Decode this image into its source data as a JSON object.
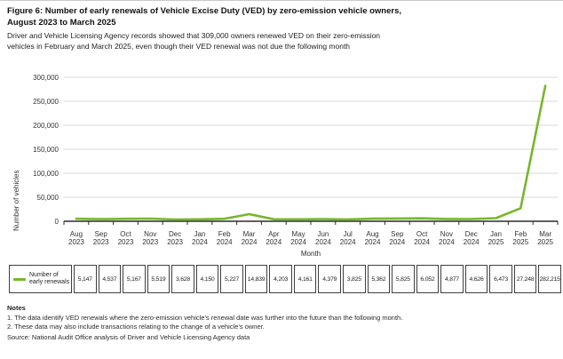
{
  "page": {
    "title_line1": "Figure 6: Number of early renewals of Vehicle Excise Duty (VED) by zero-emission vehicle owners,",
    "title_line2": "August 2023 to March 2025",
    "subtitle_line1": "Driver and Vehicle Licensing Agency records showed that 309,000 owners renewed VED on their zero-emission",
    "subtitle_line2": "vehicles in February and March 2025, even though their VED renewal was not due the following month"
  },
  "chart_data": {
    "type": "line",
    "title": "Figure 6: Number of early renewals of Vehicle Excise Duty (VED) by zero-emission vehicle owners, August 2023 to March 2025",
    "xlabel": "Month",
    "ylabel": "Number of vehicles",
    "ylim": [
      0,
      300000
    ],
    "ytick_interval": 50000,
    "ytick_labels": [
      "0",
      "50,000",
      "100,000",
      "150,000",
      "200,000",
      "250,000",
      "300,000"
    ],
    "grid": true,
    "legend_position": "bottom-table",
    "line_color": "#76b72a",
    "gridline_color": "#d9d9d9",
    "axis_color": "#2b2b2b",
    "categories": [
      "Aug 2023",
      "Sep 2023",
      "Oct 2023",
      "Nov 2023",
      "Dec 2023",
      "Jan 2024",
      "Feb 2024",
      "Mar 2024",
      "Apr 2024",
      "May 2024",
      "Jun 2024",
      "Jul 2024",
      "Aug 2024",
      "Sep 2024",
      "Oct 2024",
      "Nov 2024",
      "Dec 2024",
      "Jan 2025",
      "Feb 2025",
      "Mar 2025"
    ],
    "series": [
      {
        "name": "Number of early renewals",
        "values": [
          5147,
          4537,
          5167,
          5519,
          3628,
          4150,
          5227,
          14839,
          4203,
          4161,
          4379,
          3825,
          5362,
          5825,
          6052,
          4877,
          4626,
          6473,
          27248,
          282215
        ]
      }
    ]
  },
  "table": {
    "legend_label": "Number of early renewals",
    "values": [
      "5,147",
      "4,537",
      "5,167",
      "5,519",
      "3,628",
      "4,150",
      "5,227",
      "14,839",
      "4,203",
      "4,161",
      "4,379",
      "3,825",
      "5,362",
      "5,825",
      "6,052",
      "4,877",
      "4,626",
      "6,473",
      "27,248",
      "282,215"
    ]
  },
  "notes": {
    "heading": "Notes",
    "items": [
      "1. The data identify VED renewals where the zero-emission vehicle's renewal date was further into the future than the following month.",
      "2. These data may also include transactions relating to the change of a vehicle's owner."
    ],
    "source": "Source: National Audit Office analysis of Driver and Vehicle Licensing Agency data"
  }
}
